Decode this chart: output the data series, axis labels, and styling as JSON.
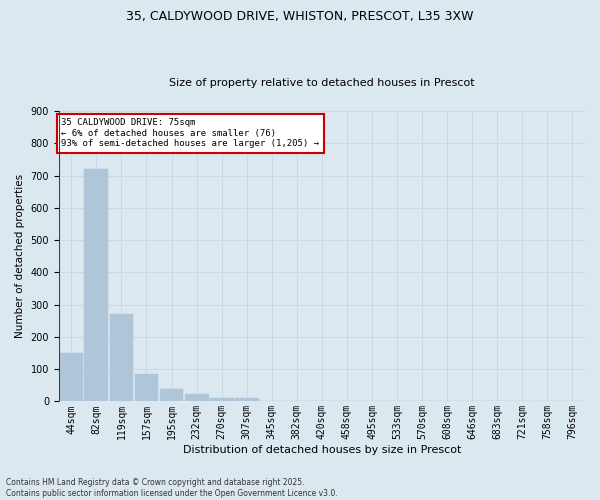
{
  "title_line1": "35, CALDYWOOD DRIVE, WHISTON, PRESCOT, L35 3XW",
  "title_line2": "Size of property relative to detached houses in Prescot",
  "xlabel": "Distribution of detached houses by size in Prescot",
  "ylabel": "Number of detached properties",
  "categories": [
    "44sqm",
    "82sqm",
    "119sqm",
    "157sqm",
    "195sqm",
    "232sqm",
    "270sqm",
    "307sqm",
    "345sqm",
    "382sqm",
    "420sqm",
    "458sqm",
    "495sqm",
    "533sqm",
    "570sqm",
    "608sqm",
    "646sqm",
    "683sqm",
    "721sqm",
    "758sqm",
    "796sqm"
  ],
  "values": [
    150,
    720,
    270,
    85,
    38,
    22,
    12,
    10,
    0,
    0,
    0,
    0,
    0,
    0,
    0,
    0,
    0,
    0,
    0,
    0,
    0
  ],
  "bar_color": "#aec6d8",
  "bar_edge_color": "#aec6d8",
  "vline_color": "#cc0000",
  "vline_x_bar_index": 0,
  "box_text_line1": "35 CALDYWOOD DRIVE: 75sqm",
  "box_text_line2": "← 6% of detached houses are smaller (76)",
  "box_text_line3": "93% of semi-detached houses are larger (1,205) →",
  "box_color": "#cc0000",
  "box_bg": "#ffffff",
  "ylim": [
    0,
    900
  ],
  "grid_color": "#c8d8e8",
  "background_color": "#dce8f0",
  "title_fontsize": 9,
  "subtitle_fontsize": 8,
  "ylabel_fontsize": 7.5,
  "xlabel_fontsize": 8,
  "tick_fontsize": 7,
  "footer_line1": "Contains HM Land Registry data © Crown copyright and database right 2025.",
  "footer_line2": "Contains public sector information licensed under the Open Government Licence v3.0."
}
